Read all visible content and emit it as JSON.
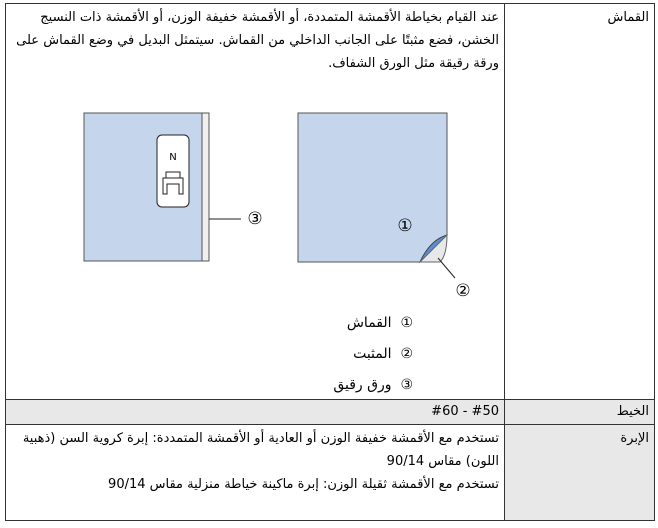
{
  "rows": [
    {
      "label": "القماش",
      "text": "عند القيام بخياطة الأقمشة المتمددة، أو الأقمشة خفيفة الوزن، أو الأقمشة ذات النسيج الخشن، فضع مثبتًا على الجانب الداخلي من القماش. سيتمثل البديل في وضع القماش على ورقة رقيقة مثل الورق الشفاف.",
      "figure": {
        "foot_letter": "N",
        "callouts": [
          "①",
          "②",
          "③"
        ]
      },
      "legend": [
        {
          "marker": "①",
          "text": "القماش"
        },
        {
          "marker": "②",
          "text": "المثبت"
        },
        {
          "marker": "③",
          "text": "ورق رقيق"
        }
      ]
    },
    {
      "label": "الخيط",
      "text": "#60 - #50"
    },
    {
      "label": "الإبرة",
      "paragraphs": [
        "تستخدم مع الأقمشة خفيفة الوزن أو العادية أو الأقمشة المتمددة: إبرة كروية السن (ذهبية اللون) مقاس 90/14",
        "تستخدم مع الأقمشة ثقيلة الوزن: إبرة ماكينة خياطة منزلية مقاس 90/14"
      ]
    }
  ]
}
